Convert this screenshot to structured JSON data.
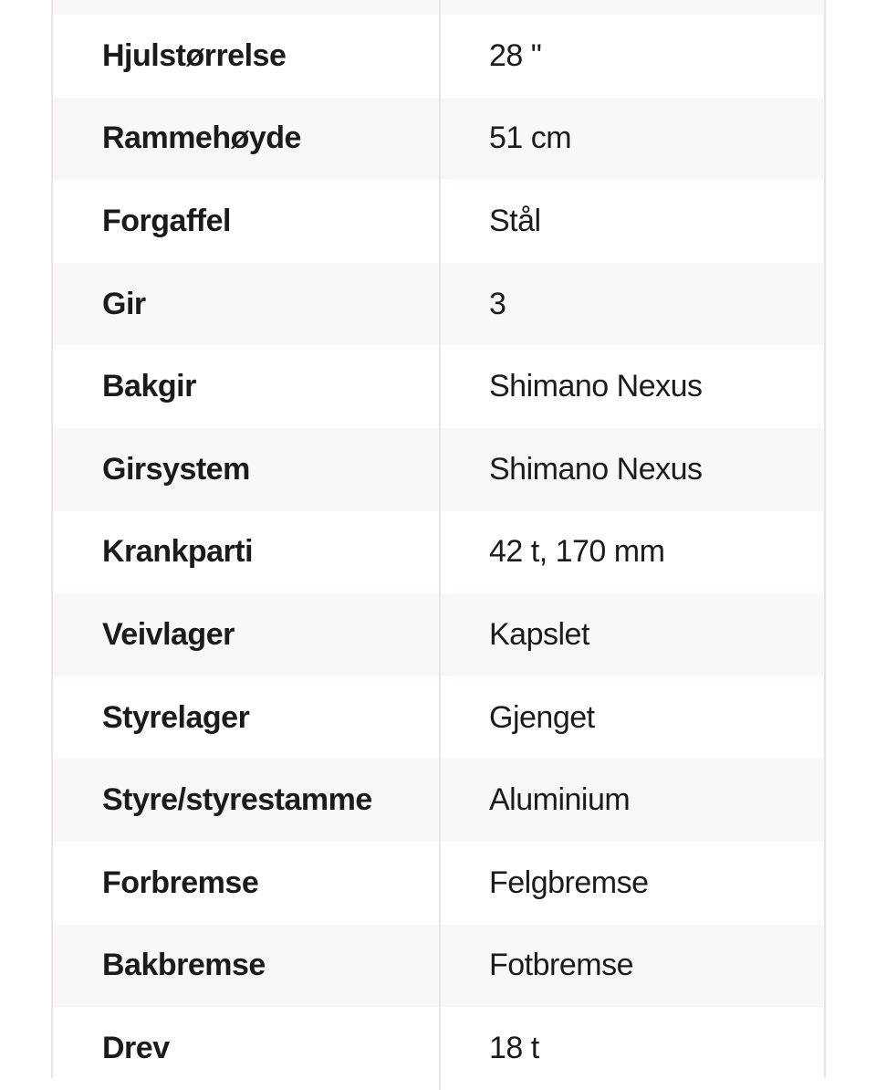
{
  "spec_table": {
    "rows": [
      {
        "label": "Hjulstørrelse",
        "value": "28 \""
      },
      {
        "label": "Rammehøyde",
        "value": "51 cm"
      },
      {
        "label": "Forgaffel",
        "value": "Stål"
      },
      {
        "label": "Gir",
        "value": "3"
      },
      {
        "label": "Bakgir",
        "value": "Shimano Nexus"
      },
      {
        "label": "Girsystem",
        "value": "Shimano Nexus"
      },
      {
        "label": "Krankparti",
        "value": "42 t, 170 mm"
      },
      {
        "label": "Veivlager",
        "value": "Kapslet"
      },
      {
        "label": "Styrelager",
        "value": "Gjenget"
      },
      {
        "label": "Styre/styrestamme",
        "value": "Aluminium"
      },
      {
        "label": "Forbremse",
        "value": "Felgbremse"
      },
      {
        "label": "Bakbremse",
        "value": "Fotbremse"
      },
      {
        "label": "Drev",
        "value": "18 t"
      }
    ],
    "colors": {
      "row_bg": "#ffffff",
      "row_alt_bg": "#faf7f9",
      "outer_border": "#e8e7e2",
      "column_divider": "#e7e6e8",
      "text": "#1b1b1b"
    }
  }
}
